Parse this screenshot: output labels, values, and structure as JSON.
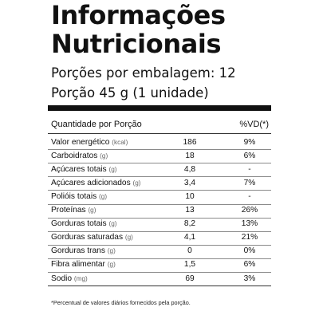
{
  "label": {
    "title_line1": "Informações",
    "title_line2": "Nutricionais",
    "servings_per_package": "Porções por embalagem: 12",
    "serving_size": "Porção 45 g (1 unidade)",
    "header_left": "Quantidade por Porção",
    "header_right": "%VD(*)",
    "footnote": "*Percentual de valores diários fornecidos pela porção."
  },
  "nutrients": [
    {
      "name": "Valor energético",
      "unit": "(kcal)",
      "amount": "186",
      "vd": "9%"
    },
    {
      "name": "Carboidratos",
      "unit": "(g)",
      "amount": "18",
      "vd": "6%"
    },
    {
      "name": "Açúcares totais",
      "unit": "(g)",
      "amount": "4,8",
      "vd": "-"
    },
    {
      "name": "Açúcares adicionados",
      "unit": "(g)",
      "amount": "3,4",
      "vd": "7%"
    },
    {
      "name": "Polióis totais",
      "unit": "(g)",
      "amount": "10",
      "vd": "-"
    },
    {
      "name": "Proteínas",
      "unit": "(g)",
      "amount": "13",
      "vd": "26%"
    },
    {
      "name": "Gorduras totais",
      "unit": "(g)",
      "amount": "8,2",
      "vd": "13%"
    },
    {
      "name": "Gorduras saturadas",
      "unit": "(g)",
      "amount": "4,1",
      "vd": "21%"
    },
    {
      "name": "Gorduras trans",
      "unit": "(g)",
      "amount": "0",
      "vd": "0%"
    },
    {
      "name": "Fibra alimentar",
      "unit": "(g)",
      "amount": "1,5",
      "vd": "6%"
    },
    {
      "name": "Sodio",
      "unit": "(mg)",
      "amount": "69",
      "vd": "3%"
    }
  ]
}
